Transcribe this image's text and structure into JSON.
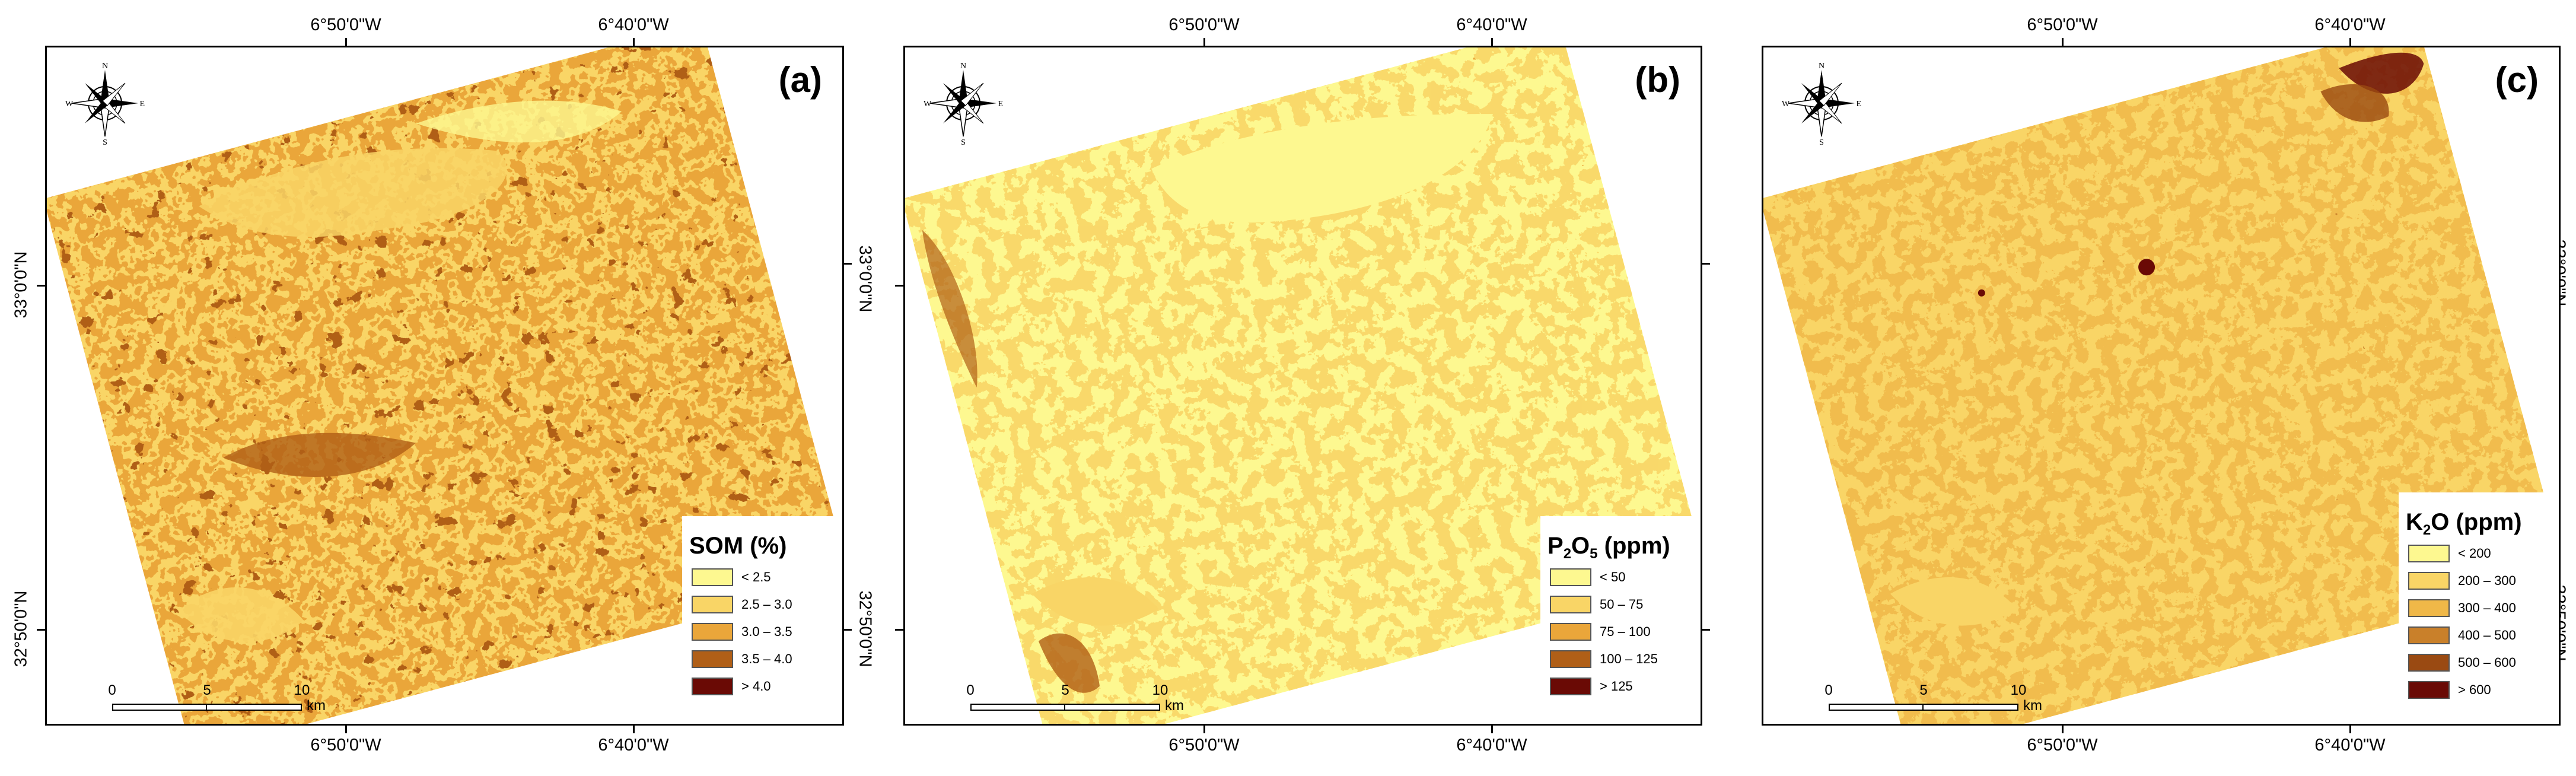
{
  "graticule": {
    "lon_1": "6°50'0\"W",
    "lon_2": "6°40'0\"W",
    "lat_1": "33°0'0\"N",
    "lat_2": "32°50'0\"N"
  },
  "compass": {
    "n": "N",
    "s": "S",
    "e": "E",
    "w": "W"
  },
  "scalebar": {
    "ticks": [
      "0",
      "5",
      "10"
    ],
    "unit": "km"
  },
  "panels": [
    {
      "id": "a",
      "letter": "(a)",
      "legend_title": "SOM (%)",
      "legend": [
        {
          "label": "< 2.5",
          "color": "#fdf890"
        },
        {
          "label": "2.5 – 3.0",
          "color": "#f9d566"
        },
        {
          "label": "3.0 – 3.5",
          "color": "#eaa63a"
        },
        {
          "label": "3.5 – 4.0",
          "color": "#b05f17"
        },
        {
          "label": "> 4.0",
          "color": "#6a0a05"
        }
      ]
    },
    {
      "id": "b",
      "letter": "(b)",
      "legend_title_main": "P",
      "legend_title_sub1": "2",
      "legend_title_mid": "O",
      "legend_title_sub2": "5",
      "legend_title_rest": " (ppm)",
      "legend": [
        {
          "label": "< 50",
          "color": "#fdf890"
        },
        {
          "label": "50 – 75",
          "color": "#f9d566"
        },
        {
          "label": "75 – 100",
          "color": "#eaa63a"
        },
        {
          "label": "100 – 125",
          "color": "#b05f17"
        },
        {
          "label": "> 125",
          "color": "#6a0a05"
        }
      ]
    },
    {
      "id": "c",
      "letter": "(c)",
      "legend_title_main": "K",
      "legend_title_sub1": "2",
      "legend_title_rest": "O (ppm)",
      "legend": [
        {
          "label": "< 200",
          "color": "#fdf890"
        },
        {
          "label": "200 – 300",
          "color": "#f9d566"
        },
        {
          "label": "300 – 400",
          "color": "#f0b848"
        },
        {
          "label": "400 – 500",
          "color": "#c9802a"
        },
        {
          "label": "500 – 600",
          "color": "#9a4a12"
        },
        {
          "label": "> 600",
          "color": "#6a0a05"
        }
      ]
    }
  ]
}
